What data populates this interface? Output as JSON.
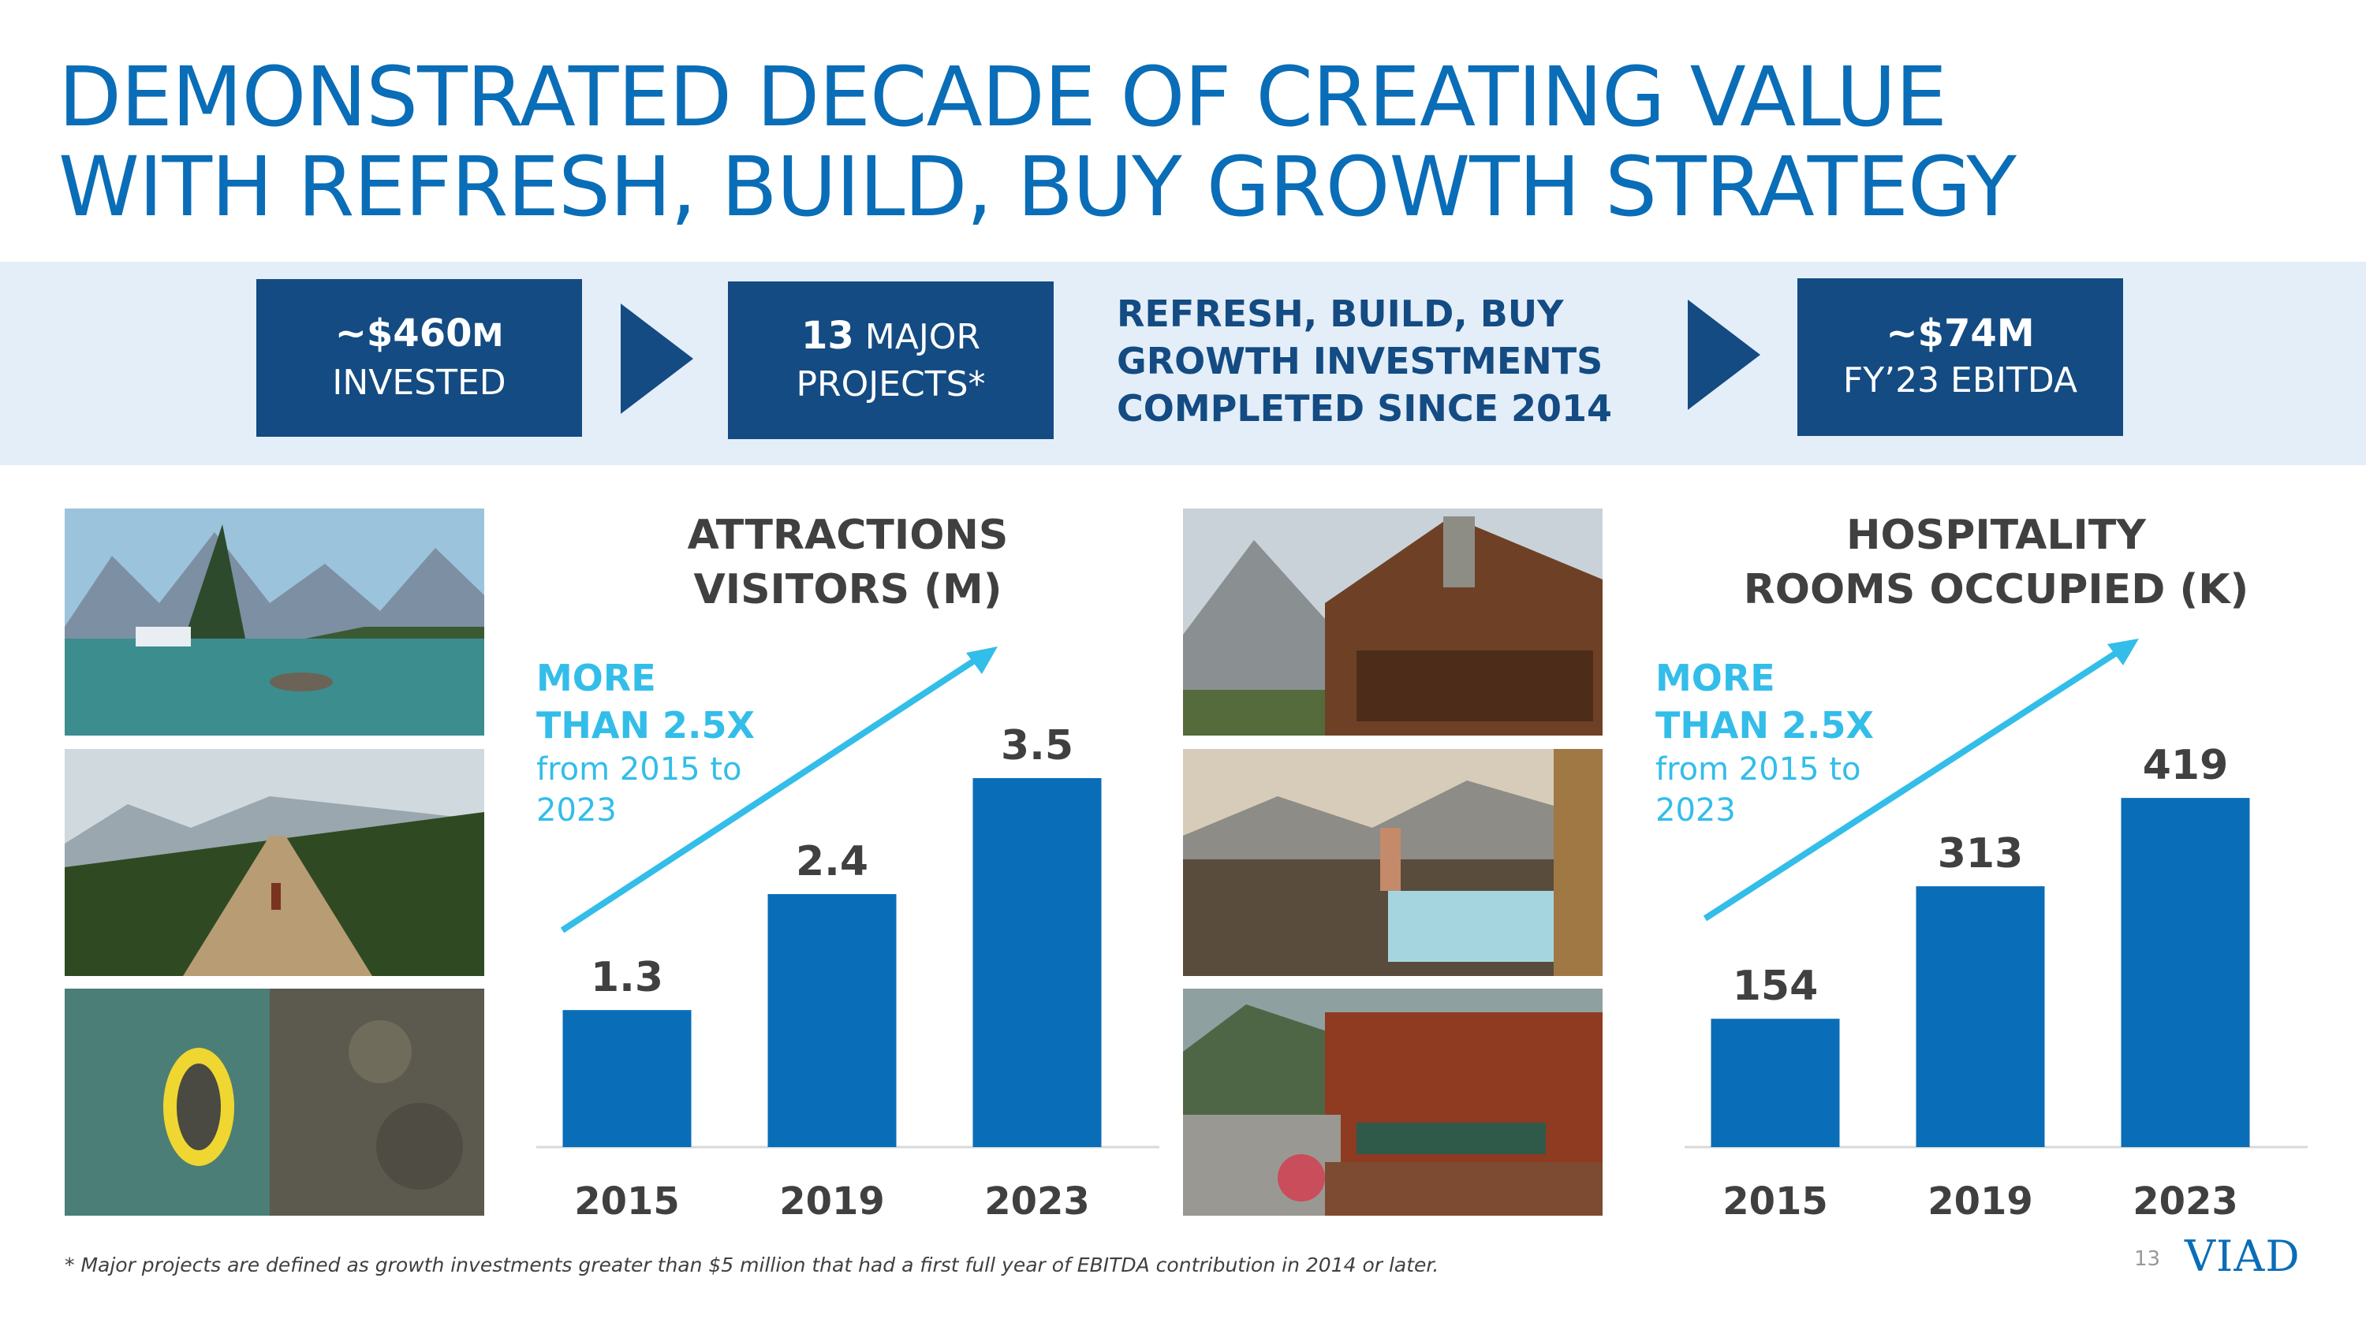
{
  "title": {
    "line1": "DEMONSTRATED DECADE OF CREATING VALUE",
    "line2": "WITH REFRESH, BUILD, BUY GROWTH STRATEGY"
  },
  "kpis": {
    "invested": {
      "value": "~$460",
      "unit": "M",
      "label": "INVESTED"
    },
    "projects": {
      "value": "13",
      "suffix": " MAJOR",
      "label": "PROJECTS*"
    },
    "middle": [
      "REFRESH, BUILD, BUY",
      "GROWTH INVESTMENTS",
      "COMPLETED SINCE 2014"
    ],
    "ebitda": {
      "value": "~$74M",
      "label": "FY’23 EBITDA"
    }
  },
  "colors": {
    "title": "#0a6db7",
    "bar": "#0a6db7",
    "box": "#134b82",
    "band": "#e4eef8",
    "callout": "#33bde9",
    "label": "#404040"
  },
  "chart_data": [
    {
      "type": "bar",
      "title": [
        "ATTRACTIONS",
        "VISITORS (M)"
      ],
      "categories": [
        "2015",
        "2019",
        "2023"
      ],
      "values": [
        1.3,
        2.4,
        3.5
      ],
      "value_labels": [
        "1.3",
        "2.4",
        "3.5"
      ],
      "ylim": [
        0,
        4.3
      ],
      "annotation": {
        "big": [
          "MORE",
          "THAN 2.5X"
        ],
        "small": [
          "from 2015 to",
          "2023"
        ]
      }
    },
    {
      "type": "bar",
      "title": [
        "HOSPITALITY",
        "ROOMS OCCUPIED (K)"
      ],
      "categories": [
        "2015",
        "2019",
        "2023"
      ],
      "values": [
        154,
        313,
        419
      ],
      "value_labels": [
        "154",
        "313",
        "419"
      ],
      "ylim": [
        0,
        544
      ],
      "annotation": {
        "big": [
          "MORE",
          "THAN 2.5X"
        ],
        "small": [
          "from 2015 to",
          "2023"
        ]
      }
    }
  ],
  "footnote": "* Major projects are defined as growth investments greater than $5 million that had a first full year of EBITDA contribution in 2014 or later.",
  "page_number": "13",
  "logo": "VIAD"
}
